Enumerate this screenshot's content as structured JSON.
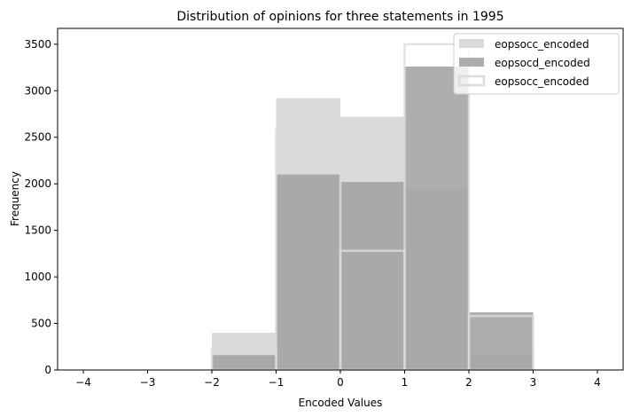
{
  "chart_data": {
    "type": "bar",
    "title": "Distribution of opinions for three statements in 1995",
    "xlabel": "Encoded Values",
    "ylabel": "Frequency",
    "xlim": [
      -4.4,
      4.4
    ],
    "ylim": [
      0,
      3670
    ],
    "xticks": [
      -4,
      -3,
      -2,
      -1,
      0,
      1,
      2,
      3,
      4
    ],
    "yticks": [
      0,
      500,
      1000,
      1500,
      2000,
      2500,
      3000,
      3500
    ],
    "bin_edges": [
      -2,
      -1,
      0,
      1,
      2,
      3
    ],
    "legend_position": "top-right",
    "grid": false,
    "series": [
      {
        "name": "eopsocc_encoded",
        "values": [
          400,
          2920,
          2720,
          1950,
          170
        ],
        "style": "filled",
        "color": "#d3d3d3"
      },
      {
        "name": "eopsocd_encoded",
        "values": [
          160,
          2100,
          2020,
          3260,
          620
        ],
        "style": "filled",
        "color": "#a0a0a0"
      },
      {
        "name": "eopsocc_encoded",
        "values": [
          230,
          2580,
          1280,
          3500,
          580
        ],
        "style": "outline",
        "color": "#dcdcdc"
      }
    ]
  }
}
